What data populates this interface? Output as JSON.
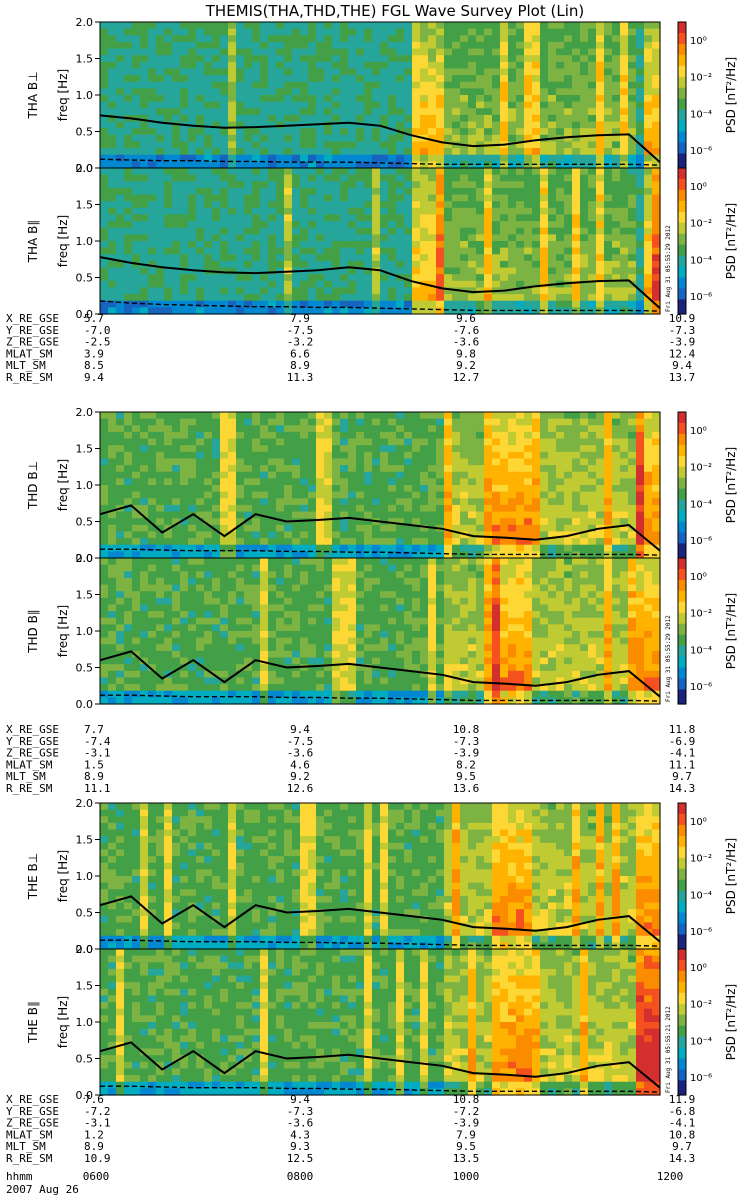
{
  "figure": {
    "title": "THEMIS(THA,THD,THE) FGL Wave Survey Plot (Lin)",
    "date": "2007 Aug 26",
    "time_row_label": "hhmm",
    "time_ticks": [
      "0600",
      "0800",
      "1000",
      "1200"
    ],
    "colorbar_label": "PSD [nT²/Hz]",
    "colorbar_ticks": [
      "10⁰",
      "10⁻²",
      "10⁻⁴",
      "10⁻⁶"
    ],
    "stamps": [
      "Fri Aug 31 05:55:29 2012",
      "Fri Aug 31 05:55:29 2012",
      "Fri Aug 31 05:55:21 2012"
    ]
  },
  "chart_data": [
    {
      "type": "heatmap",
      "probe": "THA",
      "component": "B⊥",
      "ylabel": "THA B⊥",
      "yunit": "freq [Hz]",
      "ylim": [
        0,
        2.0
      ],
      "yticks": [
        "0.0",
        "0.5",
        "1.0",
        "1.5",
        "2.0"
      ],
      "x": [
        "0600",
        "0800",
        "1000",
        "1200"
      ],
      "solid_line_hz": [
        0.72,
        0.68,
        0.62,
        0.58,
        0.55,
        0.56,
        0.58,
        0.6,
        0.62,
        0.58,
        0.45,
        0.35,
        0.3,
        0.32,
        0.38,
        0.42,
        0.45,
        0.46,
        0.08
      ],
      "dashed_line_hz": [
        0.12,
        0.11,
        0.1,
        0.1,
        0.09,
        0.09,
        0.08,
        0.08,
        0.08,
        0.07,
        0.06,
        0.05,
        0.05,
        0.05,
        0.05,
        0.05,
        0.05,
        0.05,
        0.04
      ]
    },
    {
      "type": "heatmap",
      "probe": "THA",
      "component": "B∥",
      "ylabel": "THA B∥",
      "yunit": "freq [Hz]",
      "ylim": [
        0,
        2.0
      ],
      "yticks": [
        "0.0",
        "0.5",
        "1.0",
        "1.5",
        "2.0"
      ],
      "x": [
        "0600",
        "0800",
        "1000",
        "1200"
      ],
      "solid_line_hz": [
        0.78,
        0.7,
        0.64,
        0.6,
        0.57,
        0.56,
        0.58,
        0.6,
        0.64,
        0.6,
        0.45,
        0.35,
        0.3,
        0.32,
        0.38,
        0.42,
        0.45,
        0.46,
        0.08
      ],
      "dashed_line_hz": [
        0.18,
        0.15,
        0.13,
        0.12,
        0.11,
        0.1,
        0.1,
        0.09,
        0.09,
        0.08,
        0.07,
        0.06,
        0.05,
        0.05,
        0.05,
        0.05,
        0.05,
        0.05,
        0.04
      ]
    },
    {
      "type": "heatmap",
      "probe": "THD",
      "component": "B⊥",
      "ylabel": "THD B⊥",
      "yunit": "freq [Hz]",
      "ylim": [
        0,
        2.0
      ],
      "yticks": [
        "0.0",
        "0.5",
        "1.0",
        "1.5",
        "2.0"
      ],
      "x": [
        "0600",
        "0800",
        "1000",
        "1200"
      ],
      "solid_line_hz": [
        0.6,
        0.72,
        0.35,
        0.6,
        0.3,
        0.6,
        0.5,
        0.52,
        0.55,
        0.5,
        0.45,
        0.4,
        0.3,
        0.28,
        0.25,
        0.3,
        0.4,
        0.45,
        0.1
      ],
      "dashed_line_hz": [
        0.12,
        0.12,
        0.11,
        0.1,
        0.1,
        0.1,
        0.09,
        0.09,
        0.08,
        0.08,
        0.07,
        0.06,
        0.05,
        0.05,
        0.05,
        0.05,
        0.05,
        0.05,
        0.04
      ]
    },
    {
      "type": "heatmap",
      "probe": "THD",
      "component": "B∥",
      "ylabel": "THD B∥",
      "yunit": "freq [Hz]",
      "ylim": [
        0,
        2.0
      ],
      "yticks": [
        "0.0",
        "0.5",
        "1.0",
        "1.5",
        "2.0"
      ],
      "x": [
        "0600",
        "0800",
        "1000",
        "1200"
      ],
      "solid_line_hz": [
        0.6,
        0.72,
        0.35,
        0.6,
        0.3,
        0.6,
        0.5,
        0.52,
        0.55,
        0.5,
        0.45,
        0.4,
        0.3,
        0.28,
        0.25,
        0.3,
        0.4,
        0.45,
        0.1
      ],
      "dashed_line_hz": [
        0.12,
        0.12,
        0.11,
        0.1,
        0.1,
        0.1,
        0.09,
        0.09,
        0.08,
        0.08,
        0.07,
        0.06,
        0.05,
        0.05,
        0.05,
        0.05,
        0.05,
        0.05,
        0.04
      ]
    },
    {
      "type": "heatmap",
      "probe": "THE",
      "component": "B⊥",
      "ylabel": "THE B⊥",
      "yunit": "freq [Hz]",
      "ylim": [
        0,
        2.0
      ],
      "yticks": [
        "0.0",
        "0.5",
        "1.0",
        "1.5",
        "2.0"
      ],
      "x": [
        "0600",
        "0800",
        "1000",
        "1200"
      ],
      "solid_line_hz": [
        0.6,
        0.72,
        0.35,
        0.6,
        0.3,
        0.6,
        0.5,
        0.52,
        0.55,
        0.5,
        0.45,
        0.4,
        0.3,
        0.28,
        0.25,
        0.3,
        0.4,
        0.45,
        0.1
      ],
      "dashed_line_hz": [
        0.12,
        0.12,
        0.11,
        0.1,
        0.1,
        0.1,
        0.09,
        0.09,
        0.08,
        0.08,
        0.07,
        0.06,
        0.05,
        0.05,
        0.05,
        0.05,
        0.05,
        0.05,
        0.04
      ]
    },
    {
      "type": "heatmap",
      "probe": "THE",
      "component": "B∥",
      "ylabel": "THE B∥",
      "yunit": "freq [Hz]",
      "ylim": [
        0,
        2.0
      ],
      "yticks": [
        "0.0",
        "0.5",
        "1.0",
        "1.5",
        "2.0"
      ],
      "x": [
        "0600",
        "0800",
        "1000",
        "1200"
      ],
      "solid_line_hz": [
        0.6,
        0.72,
        0.35,
        0.6,
        0.3,
        0.6,
        0.5,
        0.52,
        0.55,
        0.5,
        0.45,
        0.4,
        0.3,
        0.28,
        0.25,
        0.3,
        0.4,
        0.45,
        0.1
      ],
      "dashed_line_hz": [
        0.12,
        0.12,
        0.11,
        0.1,
        0.1,
        0.1,
        0.09,
        0.09,
        0.08,
        0.08,
        0.07,
        0.06,
        0.05,
        0.05,
        0.05,
        0.05,
        0.05,
        0.05,
        0.04
      ]
    }
  ],
  "ephemeris": [
    {
      "probe": "THA",
      "rows": [
        {
          "label": "X_RE_GSE",
          "values": [
            "5.7",
            "7.9",
            "9.6",
            "10.9"
          ]
        },
        {
          "label": "Y_RE_GSE",
          "values": [
            "-7.0",
            "-7.5",
            "-7.6",
            "-7.3"
          ]
        },
        {
          "label": "Z_RE_GSE",
          "values": [
            "-2.5",
            "-3.2",
            "-3.6",
            "-3.9"
          ]
        },
        {
          "label": "MLAT_SM",
          "values": [
            "3.9",
            "6.6",
            "9.8",
            "12.4"
          ]
        },
        {
          "label": "MLT_SM",
          "values": [
            "8.5",
            "8.9",
            "9.2",
            "9.4"
          ]
        },
        {
          "label": "R_RE_SM",
          "values": [
            "9.4",
            "11.3",
            "12.7",
            "13.7"
          ]
        }
      ]
    },
    {
      "probe": "THD",
      "rows": [
        {
          "label": "X_RE_GSE",
          "values": [
            "7.7",
            "9.4",
            "10.8",
            "11.8"
          ]
        },
        {
          "label": "Y_RE_GSE",
          "values": [
            "-7.4",
            "-7.5",
            "-7.3",
            "-6.9"
          ]
        },
        {
          "label": "Z_RE_GSE",
          "values": [
            "-3.1",
            "-3.6",
            "-3.9",
            "-4.1"
          ]
        },
        {
          "label": "MLAT_SM",
          "values": [
            "1.5",
            "4.6",
            "8.2",
            "11.1"
          ]
        },
        {
          "label": "MLT_SM",
          "values": [
            "8.9",
            "9.2",
            "9.5",
            "9.7"
          ]
        },
        {
          "label": "R_RE_SM",
          "values": [
            "11.1",
            "12.6",
            "13.6",
            "14.3"
          ]
        }
      ]
    },
    {
      "probe": "THE",
      "rows": [
        {
          "label": "X_RE_GSE",
          "values": [
            "7.6",
            "9.4",
            "10.8",
            "11.9"
          ]
        },
        {
          "label": "Y_RE_GSE",
          "values": [
            "-7.2",
            "-7.3",
            "-7.2",
            "-6.8"
          ]
        },
        {
          "label": "Z_RE_GSE",
          "values": [
            "-3.1",
            "-3.6",
            "-3.9",
            "-4.1"
          ]
        },
        {
          "label": "MLAT_SM",
          "values": [
            "1.2",
            "4.3",
            "7.9",
            "10.8"
          ]
        },
        {
          "label": "MLT_SM",
          "values": [
            "8.9",
            "9.3",
            "9.5",
            "9.7"
          ]
        },
        {
          "label": "R_RE_SM",
          "values": [
            "10.9",
            "12.5",
            "13.5",
            "14.3"
          ]
        }
      ]
    }
  ]
}
